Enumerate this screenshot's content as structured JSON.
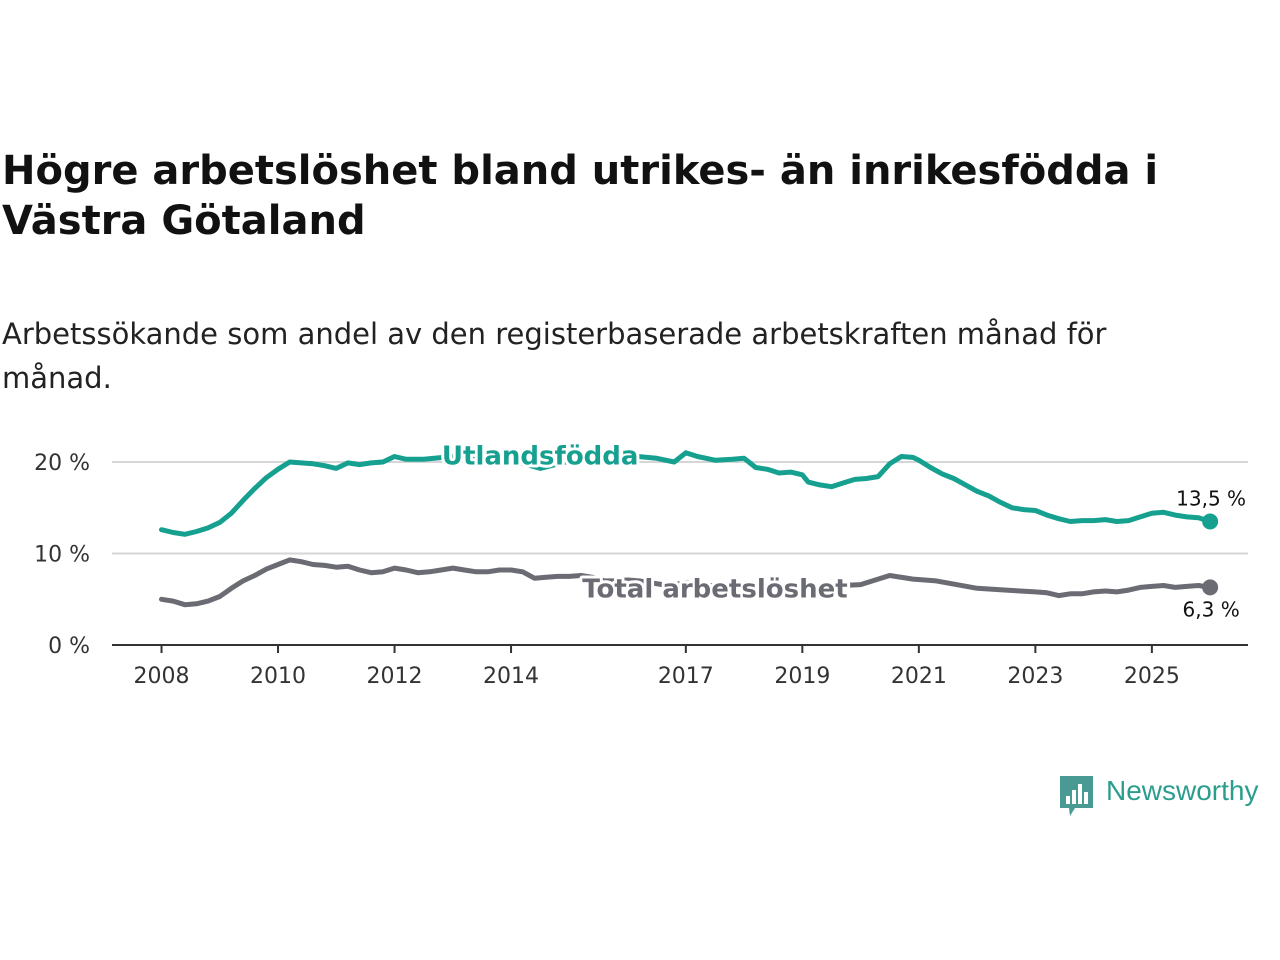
{
  "title": "Högre arbetslöshet bland utrikes- än inrikesfödda i Västra Götaland",
  "subtitle": "Arbetssökande som andel av den registerbaserade arbetskraften månad för månad.",
  "brand": {
    "name": "Newsworthy",
    "icon": "newsworthy-logo-icon"
  },
  "colors": {
    "utlandsfodda": "#16a090",
    "total": "#6b6b74",
    "grid": "#d6d6d6",
    "axis": "#333333"
  },
  "chart_data": {
    "type": "line",
    "x_unit": "year",
    "xlim": [
      2007.15,
      2026.65
    ],
    "ylim": [
      0,
      20
    ],
    "y_ticks": [
      {
        "value": 0,
        "label": "0 %"
      },
      {
        "value": 10,
        "label": "10 %"
      },
      {
        "value": 20,
        "label": "20 %"
      }
    ],
    "x_ticks": [
      {
        "value": 2008,
        "label": "2008"
      },
      {
        "value": 2010,
        "label": "2010"
      },
      {
        "value": 2012,
        "label": "2012"
      },
      {
        "value": 2014,
        "label": "2014"
      },
      {
        "value": 2017,
        "label": "2017"
      },
      {
        "value": 2019,
        "label": "2019"
      },
      {
        "value": 2021,
        "label": "2021"
      },
      {
        "value": 2023,
        "label": "2023"
      },
      {
        "value": 2025,
        "label": "2025"
      }
    ],
    "grid": true,
    "series": [
      {
        "name": "Utlandsfödda",
        "key": "utlandsfodda",
        "label_position": [
          2014.5,
          20.8
        ],
        "end_label": "13,5 %",
        "points": [
          [
            2008.0,
            12.6
          ],
          [
            2008.2,
            12.3
          ],
          [
            2008.4,
            12.1
          ],
          [
            2008.6,
            12.4
          ],
          [
            2008.8,
            12.8
          ],
          [
            2009.0,
            13.4
          ],
          [
            2009.2,
            14.4
          ],
          [
            2009.4,
            15.8
          ],
          [
            2009.6,
            17.1
          ],
          [
            2009.8,
            18.3
          ],
          [
            2010.0,
            19.2
          ],
          [
            2010.2,
            20.0
          ],
          [
            2010.4,
            19.9
          ],
          [
            2010.6,
            19.8
          ],
          [
            2010.8,
            19.6
          ],
          [
            2011.0,
            19.3
          ],
          [
            2011.2,
            19.9
          ],
          [
            2011.4,
            19.7
          ],
          [
            2011.6,
            19.9
          ],
          [
            2011.8,
            20.0
          ],
          [
            2012.0,
            20.6
          ],
          [
            2012.2,
            20.3
          ],
          [
            2012.5,
            20.3
          ],
          [
            2013.0,
            20.6
          ],
          [
            2013.5,
            20.2
          ],
          [
            2014.0,
            20.2
          ],
          [
            2014.5,
            19.3
          ],
          [
            2015.0,
            20.1
          ],
          [
            2015.5,
            20.6
          ],
          [
            2016.0,
            20.7
          ],
          [
            2016.5,
            20.4
          ],
          [
            2016.8,
            20.0
          ],
          [
            2017.0,
            21.0
          ],
          [
            2017.2,
            20.6
          ],
          [
            2017.5,
            20.2
          ],
          [
            2017.8,
            20.3
          ],
          [
            2018.0,
            20.4
          ],
          [
            2018.2,
            19.4
          ],
          [
            2018.4,
            19.2
          ],
          [
            2018.6,
            18.8
          ],
          [
            2018.8,
            18.9
          ],
          [
            2019.0,
            18.6
          ],
          [
            2019.1,
            17.8
          ],
          [
            2019.3,
            17.5
          ],
          [
            2019.5,
            17.3
          ],
          [
            2019.7,
            17.7
          ],
          [
            2019.9,
            18.1
          ],
          [
            2020.1,
            18.2
          ],
          [
            2020.3,
            18.4
          ],
          [
            2020.5,
            19.8
          ],
          [
            2020.7,
            20.6
          ],
          [
            2020.9,
            20.5
          ],
          [
            2021.0,
            20.2
          ],
          [
            2021.2,
            19.4
          ],
          [
            2021.4,
            18.7
          ],
          [
            2021.6,
            18.2
          ],
          [
            2021.8,
            17.5
          ],
          [
            2022.0,
            16.8
          ],
          [
            2022.2,
            16.3
          ],
          [
            2022.4,
            15.6
          ],
          [
            2022.6,
            15.0
          ],
          [
            2022.8,
            14.8
          ],
          [
            2023.0,
            14.7
          ],
          [
            2023.2,
            14.2
          ],
          [
            2023.4,
            13.8
          ],
          [
            2023.6,
            13.5
          ],
          [
            2023.8,
            13.6
          ],
          [
            2024.0,
            13.6
          ],
          [
            2024.2,
            13.7
          ],
          [
            2024.4,
            13.5
          ],
          [
            2024.6,
            13.6
          ],
          [
            2024.8,
            14.0
          ],
          [
            2025.0,
            14.4
          ],
          [
            2025.2,
            14.5
          ],
          [
            2025.4,
            14.2
          ],
          [
            2025.6,
            14.0
          ],
          [
            2025.8,
            13.9
          ],
          [
            2026.0,
            13.5
          ]
        ]
      },
      {
        "name": "Total arbetslöshet",
        "key": "total",
        "label_position": [
          2017.5,
          6.3
        ],
        "end_label": "6,3 %",
        "points": [
          [
            2008.0,
            5.0
          ],
          [
            2008.2,
            4.8
          ],
          [
            2008.4,
            4.4
          ],
          [
            2008.6,
            4.5
          ],
          [
            2008.8,
            4.8
          ],
          [
            2009.0,
            5.3
          ],
          [
            2009.2,
            6.2
          ],
          [
            2009.4,
            7.0
          ],
          [
            2009.6,
            7.6
          ],
          [
            2009.8,
            8.3
          ],
          [
            2010.0,
            8.8
          ],
          [
            2010.2,
            9.3
          ],
          [
            2010.4,
            9.1
          ],
          [
            2010.6,
            8.8
          ],
          [
            2010.8,
            8.7
          ],
          [
            2011.0,
            8.5
          ],
          [
            2011.2,
            8.6
          ],
          [
            2011.4,
            8.2
          ],
          [
            2011.6,
            7.9
          ],
          [
            2011.8,
            8.0
          ],
          [
            2012.0,
            8.4
          ],
          [
            2012.2,
            8.2
          ],
          [
            2012.4,
            7.9
          ],
          [
            2012.6,
            8.0
          ],
          [
            2012.8,
            8.2
          ],
          [
            2013.0,
            8.4
          ],
          [
            2013.2,
            8.2
          ],
          [
            2013.4,
            8.0
          ],
          [
            2013.6,
            8.0
          ],
          [
            2013.8,
            8.2
          ],
          [
            2014.0,
            8.2
          ],
          [
            2014.2,
            8.0
          ],
          [
            2014.4,
            7.3
          ],
          [
            2014.6,
            7.4
          ],
          [
            2014.8,
            7.5
          ],
          [
            2015.0,
            7.5
          ],
          [
            2015.2,
            7.6
          ],
          [
            2015.4,
            7.4
          ],
          [
            2015.6,
            7.0
          ],
          [
            2015.8,
            7.0
          ],
          [
            2016.0,
            7.1
          ],
          [
            2016.2,
            7.0
          ],
          [
            2016.4,
            6.8
          ],
          [
            2016.6,
            6.6
          ],
          [
            2016.8,
            6.6
          ],
          [
            2017.0,
            6.8
          ],
          [
            2017.2,
            6.7
          ],
          [
            2017.4,
            6.5
          ],
          [
            2018.0,
            6.4
          ],
          [
            2019.0,
            6.3
          ],
          [
            2020.0,
            6.6
          ],
          [
            2020.5,
            7.6
          ],
          [
            2020.9,
            7.2
          ],
          [
            2021.3,
            7.0
          ],
          [
            2022.0,
            6.2
          ],
          [
            2022.5,
            6.0
          ],
          [
            2023.0,
            5.8
          ],
          [
            2023.2,
            5.7
          ],
          [
            2023.4,
            5.4
          ],
          [
            2023.6,
            5.6
          ],
          [
            2023.8,
            5.6
          ],
          [
            2024.0,
            5.8
          ],
          [
            2024.2,
            5.9
          ],
          [
            2024.4,
            5.8
          ],
          [
            2024.6,
            6.0
          ],
          [
            2024.8,
            6.3
          ],
          [
            2025.0,
            6.4
          ],
          [
            2025.2,
            6.5
          ],
          [
            2025.4,
            6.3
          ],
          [
            2025.6,
            6.4
          ],
          [
            2025.8,
            6.5
          ],
          [
            2026.0,
            6.3
          ]
        ]
      }
    ]
  }
}
